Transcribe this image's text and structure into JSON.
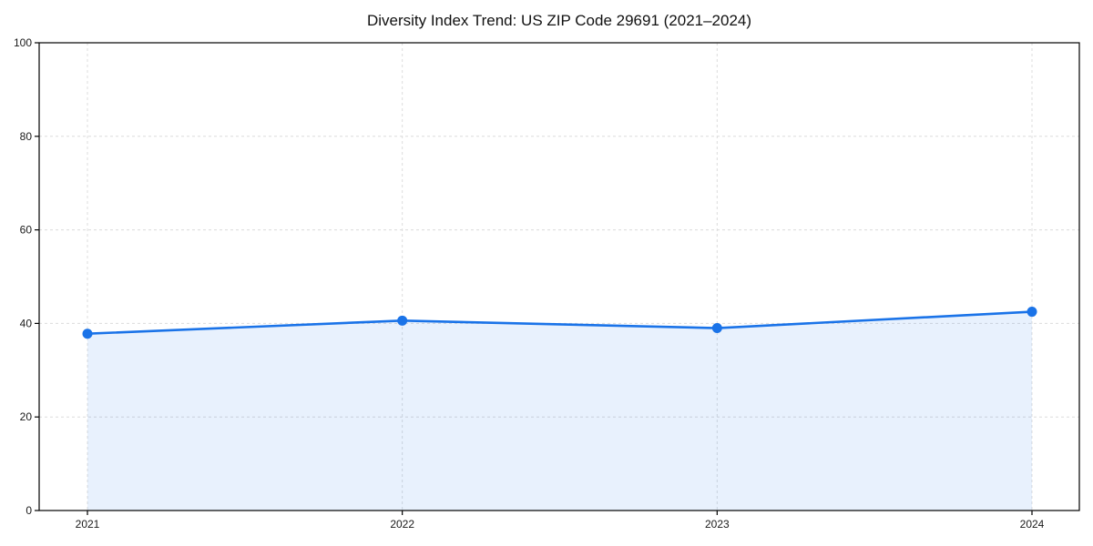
{
  "chart_data": {
    "type": "area",
    "title": "Diversity Index Trend: US ZIP Code 29691 (2021–2024)",
    "categories": [
      "2021",
      "2022",
      "2023",
      "2024"
    ],
    "series": [
      {
        "name": "Diversity Index",
        "values": [
          37.8,
          40.6,
          39.0,
          42.5
        ]
      }
    ],
    "xlabel": "",
    "ylabel": "",
    "ylim": [
      0,
      100
    ],
    "yticks": [
      0,
      20,
      40,
      60,
      80,
      100
    ],
    "grid": true,
    "grid_style": "dashed",
    "legend": "none",
    "colors": {
      "line": "#1a73e8",
      "marker": "#1a73e8",
      "fill": "#1a73e8",
      "fill_opacity": "0.1",
      "grid": "#dcdcdc",
      "axis": "#000000",
      "text": "#1a1a1a",
      "background": "#ffffff"
    }
  }
}
